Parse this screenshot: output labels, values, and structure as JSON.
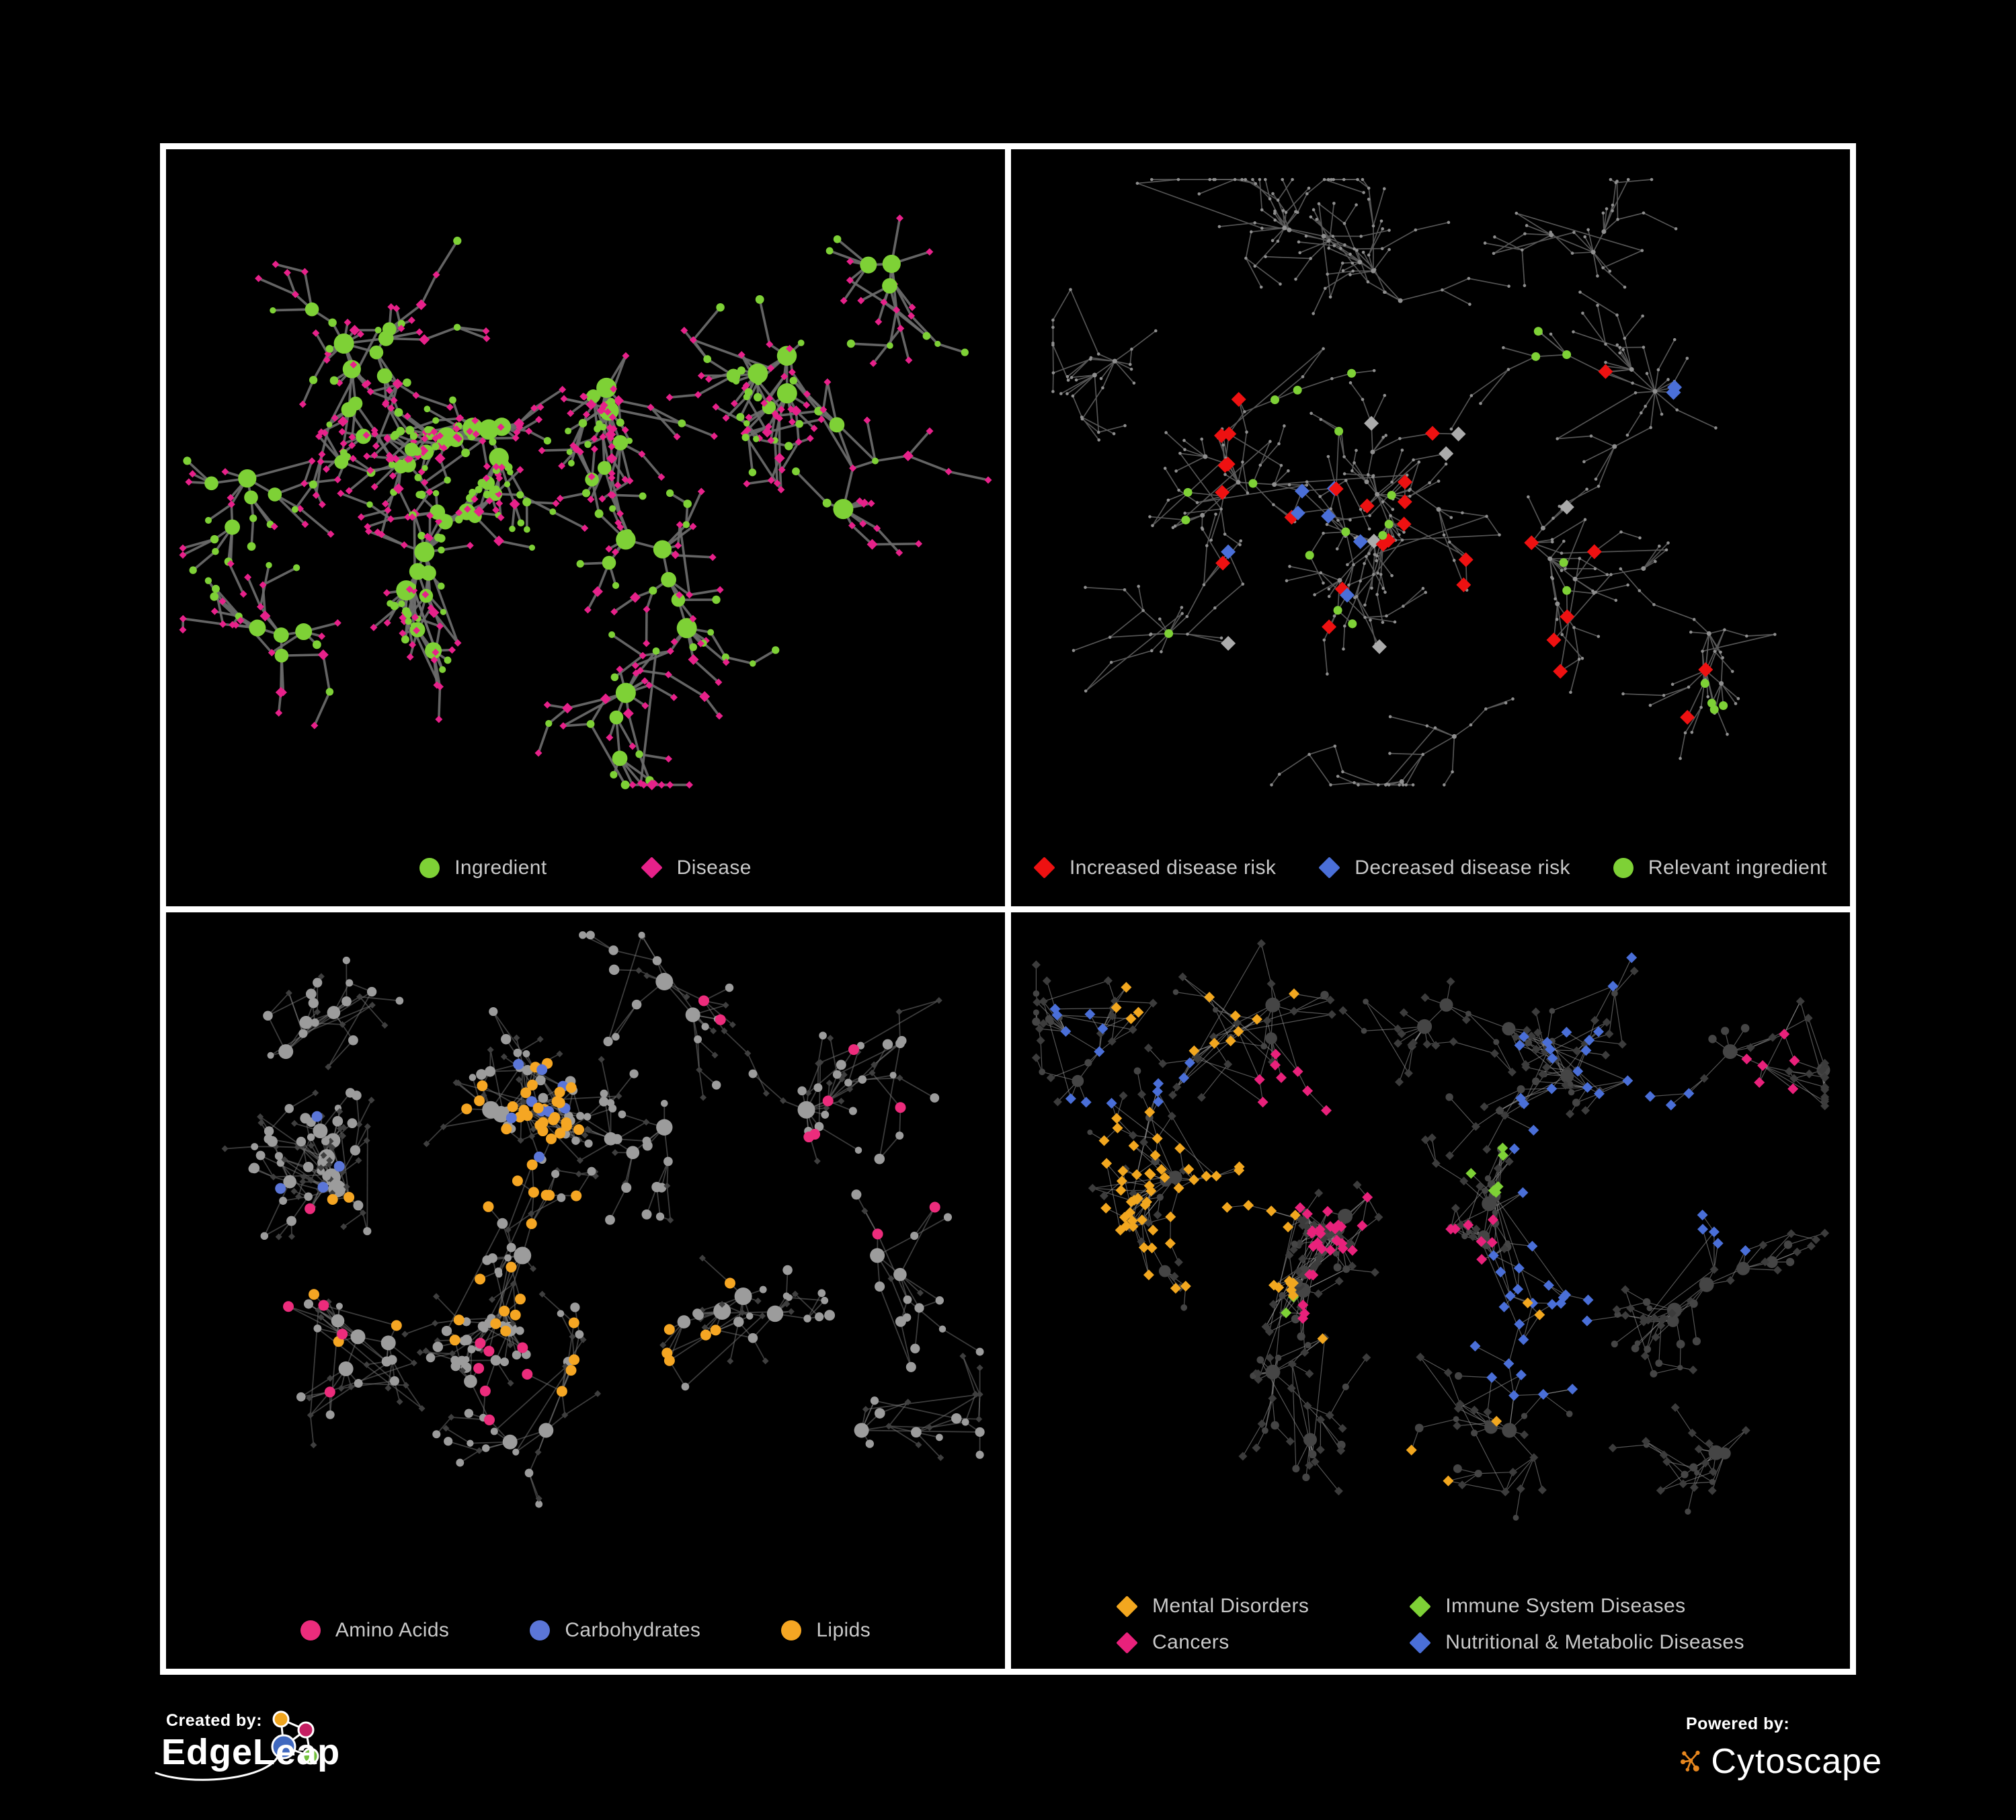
{
  "panels": [
    {
      "id": "ingredient-disease",
      "legend": {
        "items": [
          {
            "label": "Ingredient",
            "shape": "circle",
            "color": "#7ED136"
          },
          {
            "label": "Disease",
            "shape": "diamond",
            "color": "#E7218A"
          }
        ]
      },
      "network": {
        "seed": 101,
        "n": 640,
        "hubP": 0.5,
        "web": 0.05,
        "area": [
          0.02,
          0.03,
          0.98,
          0.84
        ],
        "edge": {
          "color": "#6d6d6d",
          "width": 3.6,
          "opacity": 0.92
        },
        "base": {
          "mode": "p1",
          "color": "#7ED136",
          "altColor": "#E7218A"
        },
        "clusters": [
          [
            0.38,
            0.42,
            3,
            0.8
          ],
          [
            0.2,
            0.28,
            1.4,
            1
          ],
          [
            0.55,
            0.3,
            1.4,
            1
          ],
          [
            0.3,
            0.62,
            1.5,
            0.9
          ],
          [
            0.55,
            0.6,
            1.2,
            0.9
          ],
          [
            0.75,
            0.3,
            1.2,
            1.1
          ],
          [
            0.15,
            0.75,
            0.8,
            1
          ],
          [
            0.55,
            0.85,
            0.9,
            1
          ],
          [
            0.82,
            0.55,
            0.7,
            1.1
          ],
          [
            0.08,
            0.5,
            0.6,
            1
          ],
          [
            0.88,
            0.15,
            0.5,
            1.1
          ]
        ],
        "specials": []
      }
    },
    {
      "id": "disease-risk",
      "legend": {
        "items": [
          {
            "label": "Increased disease risk",
            "shape": "diamond",
            "color": "#EE1111"
          },
          {
            "label": "Decreased disease risk",
            "shape": "diamond",
            "color": "#4A6FD8"
          },
          {
            "label": "Relevant ingredient",
            "shape": "circle",
            "color": "#7ED136"
          }
        ]
      },
      "network": {
        "seed": 202,
        "n": 580,
        "hubP": 0.42,
        "web": 0.09,
        "area": [
          0.05,
          0.04,
          0.97,
          0.84
        ],
        "edge": {
          "color": "#5a5a5a",
          "width": 1.7,
          "opacity": 0.95
        },
        "base": {
          "mode": "p2",
          "color": "#8f8f8f"
        },
        "clusters": [
          [
            0.42,
            0.52,
            2.6,
            0.85
          ],
          [
            0.24,
            0.5,
            1.8,
            0.85
          ],
          [
            0.45,
            0.2,
            1.2,
            1.05
          ],
          [
            0.3,
            0.08,
            0.8,
            1
          ],
          [
            0.62,
            0.6,
            1.3,
            0.9
          ],
          [
            0.78,
            0.35,
            1,
            1.15
          ],
          [
            0.85,
            0.75,
            0.9,
            1
          ],
          [
            0.52,
            0.92,
            0.8,
            0.9
          ],
          [
            0.15,
            0.75,
            0.8,
            1.05
          ],
          [
            0.7,
            0.12,
            0.7,
            1.1
          ],
          [
            0.08,
            0.3,
            0.6,
            1
          ]
        ],
        "specials": [
          {
            "shape": "diamond",
            "color": "#EE1111",
            "size": 11,
            "count": 24,
            "region": [
              0.2,
              0.3,
              0.75,
              0.75
            ]
          },
          {
            "shape": "diamond",
            "color": "#EE1111",
            "size": 11,
            "count": 4,
            "region": [
              0.6,
              0.75,
              0.85,
              0.95
            ]
          },
          {
            "shape": "diamond",
            "color": "#4A6FD8",
            "size": 11,
            "count": 7,
            "region": [
              0.18,
              0.45,
              0.4,
              0.7
            ]
          },
          {
            "shape": "diamond",
            "color": "#4A6FD8",
            "size": 11,
            "count": 2,
            "region": [
              0.8,
              0.3,
              0.92,
              0.45
            ]
          },
          {
            "shape": "diamond",
            "color": "#ABABAB",
            "size": 11,
            "count": 7,
            "region": [
              0.2,
              0.4,
              0.7,
              0.8
            ]
          },
          {
            "shape": "circle",
            "color": "#7ED136",
            "size": 6.5,
            "count": 20,
            "region": [
              0.15,
              0.25,
              0.7,
              0.8
            ]
          },
          {
            "shape": "circle",
            "color": "#7ED136",
            "size": 6.5,
            "count": 4,
            "region": [
              0.6,
              0.78,
              0.95,
              0.95
            ]
          }
        ]
      }
    },
    {
      "id": "ingredient-classes",
      "legend": {
        "items": [
          {
            "label": "Amino Acids",
            "shape": "circle",
            "color": "#EC2C7C"
          },
          {
            "label": "Carbohydrates",
            "shape": "circle",
            "color": "#5B76D8"
          },
          {
            "label": "Lipids",
            "shape": "circle",
            "color": "#F5A623"
          }
        ]
      },
      "network": {
        "seed": 303,
        "n": 560,
        "hubP": 0.5,
        "web": 0.2,
        "area": [
          0.03,
          0.03,
          0.97,
          0.8
        ],
        "edge": {
          "color": "#777777",
          "width": 1.8,
          "opacity": 0.5
        },
        "base": {
          "mode": "p3",
          "color": "#9c9c9c",
          "altColor": "#3f3f3f"
        },
        "clusters": [
          [
            0.2,
            0.45,
            2.4,
            0.72
          ],
          [
            0.38,
            0.3,
            2.2,
            0.72
          ],
          [
            0.42,
            0.55,
            1.6,
            0.8
          ],
          [
            0.25,
            0.7,
            1.2,
            0.85
          ],
          [
            0.6,
            0.33,
            1,
            1.1
          ],
          [
            0.78,
            0.3,
            0.9,
            1.1
          ],
          [
            0.7,
            0.62,
            1,
            1
          ],
          [
            0.45,
            0.85,
            0.9,
            1
          ],
          [
            0.12,
            0.2,
            0.7,
            1
          ],
          [
            0.87,
            0.55,
            0.6,
            1.1
          ],
          [
            0.6,
            0.08,
            0.6,
            1.1
          ],
          [
            0.85,
            0.85,
            0.5,
            1
          ]
        ],
        "specials": [
          {
            "shape": "circle",
            "color": "#F5A623",
            "size": 8,
            "count": 34,
            "region": [
              0.28,
              0.18,
              0.5,
              0.45
            ]
          },
          {
            "shape": "circle",
            "color": "#F5A623",
            "size": 8,
            "count": 16,
            "region": [
              0.1,
              0.45,
              0.45,
              0.7
            ]
          },
          {
            "shape": "circle",
            "color": "#F5A623",
            "size": 8,
            "count": 10,
            "region": [
              0.45,
              0.5,
              0.85,
              0.95
            ]
          },
          {
            "shape": "circle",
            "color": "#5B76D8",
            "size": 8,
            "count": 9,
            "region": [
              0.3,
              0.2,
              0.48,
              0.42
            ]
          },
          {
            "shape": "circle",
            "color": "#5B76D8",
            "size": 8,
            "count": 4,
            "region": [
              0.05,
              0.3,
              0.25,
              0.6
            ]
          },
          {
            "shape": "circle",
            "color": "#EC2C7C",
            "size": 8,
            "count": 7,
            "region": [
              0.35,
              0.55,
              0.75,
              0.85
            ]
          },
          {
            "shape": "circle",
            "color": "#EC2C7C",
            "size": 8,
            "count": 5,
            "region": [
              0.05,
              0.45,
              0.2,
              0.8
            ]
          },
          {
            "shape": "circle",
            "color": "#EC2C7C",
            "size": 8,
            "count": 5,
            "region": [
              0.5,
              0.0,
              0.9,
              0.3
            ]
          },
          {
            "shape": "circle",
            "color": "#EC2C7C",
            "size": 8,
            "count": 4,
            "region": [
              0.75,
              0.3,
              0.98,
              0.55
            ]
          }
        ]
      }
    },
    {
      "id": "disease-categories",
      "legend": {
        "items": [
          {
            "label": "Mental Disorders",
            "shape": "diamond",
            "color": "#F2A71F"
          },
          {
            "label": "Immune System Diseases",
            "shape": "diamond",
            "color": "#7ED136"
          },
          {
            "label": "Cancers",
            "shape": "diamond",
            "color": "#E9217B"
          },
          {
            "label": "Nutritional & Metabolic Diseases",
            "shape": "diamond",
            "color": "#4A6FD8"
          }
        ]
      },
      "network": {
        "seed": 404,
        "n": 600,
        "hubP": 0.5,
        "web": 0.24,
        "area": [
          0.03,
          0.03,
          0.97,
          0.8
        ],
        "edge": {
          "color": "#9a9a9a",
          "width": 1.2,
          "opacity": 0.55
        },
        "base": {
          "mode": "p4",
          "color": "#3c3c3c",
          "altColor": "#454545"
        },
        "clusters": [
          [
            0.2,
            0.42,
            2.2,
            0.7
          ],
          [
            0.42,
            0.45,
            2.4,
            0.72
          ],
          [
            0.58,
            0.55,
            1.4,
            0.8
          ],
          [
            0.3,
            0.12,
            1,
            1
          ],
          [
            0.52,
            0.12,
            1,
            1
          ],
          [
            0.75,
            0.25,
            1.2,
            1
          ],
          [
            0.88,
            0.2,
            0.8,
            1
          ],
          [
            0.3,
            0.75,
            1.1,
            0.9
          ],
          [
            0.6,
            0.85,
            1,
            0.95
          ],
          [
            0.85,
            0.6,
            1,
            1
          ],
          [
            0.08,
            0.2,
            0.7,
            1
          ],
          [
            0.9,
            0.85,
            0.5,
            1
          ]
        ],
        "specials": [
          {
            "shape": "diamond",
            "color": "#F2A71F",
            "size": 8,
            "count": 60,
            "region": [
              0.08,
              0.3,
              0.33,
              0.62
            ]
          },
          {
            "shape": "diamond",
            "color": "#F2A71F",
            "size": 8,
            "count": 12,
            "region": [
              0.1,
              0.02,
              0.35,
              0.2
            ]
          },
          {
            "shape": "diamond",
            "color": "#F2A71F",
            "size": 8,
            "count": 6,
            "region": [
              0.35,
              0.6,
              0.75,
              0.95
            ]
          },
          {
            "shape": "diamond",
            "color": "#E9217B",
            "size": 8,
            "count": 34,
            "region": [
              0.33,
              0.45,
              0.58,
              0.68
            ]
          },
          {
            "shape": "diamond",
            "color": "#E9217B",
            "size": 8,
            "count": 8,
            "region": [
              0.25,
              0.2,
              0.45,
              0.4
            ]
          },
          {
            "shape": "diamond",
            "color": "#E9217B",
            "size": 8,
            "count": 6,
            "region": [
              0.85,
              0.15,
              0.98,
              0.35
            ]
          },
          {
            "shape": "diamond",
            "color": "#4A6FD8",
            "size": 8,
            "count": 26,
            "region": [
              0.55,
              0.55,
              0.72,
              0.8
            ]
          },
          {
            "shape": "diamond",
            "color": "#4A6FD8",
            "size": 8,
            "count": 22,
            "region": [
              0.6,
              0.02,
              0.95,
              0.35
            ]
          },
          {
            "shape": "diamond",
            "color": "#4A6FD8",
            "size": 8,
            "count": 14,
            "region": [
              0.02,
              0.02,
              0.35,
              0.3
            ]
          },
          {
            "shape": "diamond",
            "color": "#4A6FD8",
            "size": 8,
            "count": 10,
            "region": [
              0.6,
              0.35,
              0.9,
              0.55
            ]
          },
          {
            "shape": "diamond",
            "color": "#7ED136",
            "size": 8,
            "count": 8,
            "region": [
              0.2,
              0.3,
              0.6,
              0.7
            ]
          }
        ]
      }
    }
  ],
  "footer": {
    "created": {
      "label": "Created by:",
      "brand": "EdgeLeap",
      "colors": {
        "orange": "#EFA51F",
        "magenta": "#C51E62",
        "blue": "#3F68BF",
        "green": "#72C13C"
      }
    },
    "powered": {
      "label": "Powered by:",
      "brand": "Cytoscape",
      "color": "#E8871E"
    }
  }
}
